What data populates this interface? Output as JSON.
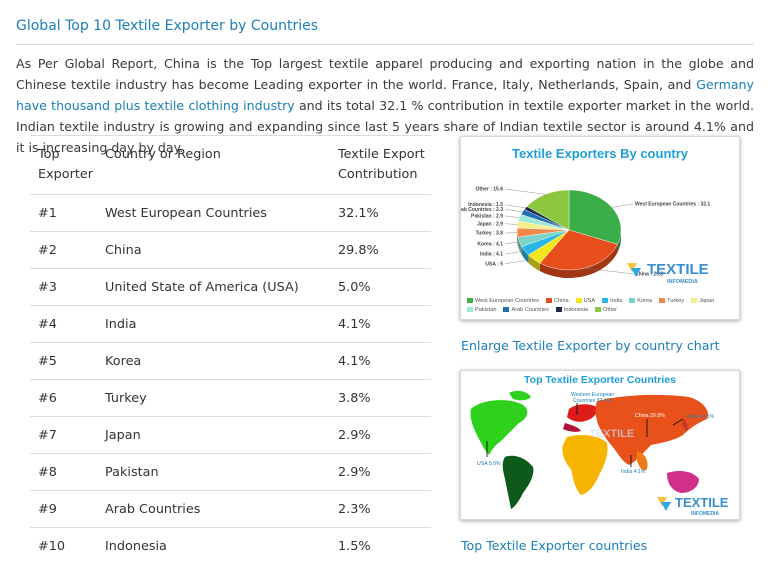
{
  "heading": "Global Top 10 Textile Exporter by Countries",
  "intro": {
    "part1": "As Per Global Report, China is the Top largest textile apparel producing and exporting nation in the globe and Chinese textile industry has become Leading exporter in the world. France, Italy, Netherlands, Spain, and ",
    "link": "Germany have thousand plus textile clothing industry",
    "part2": " and its total 32.1 % contribution in textile exporter market in the world. Indian textile industry is growing and expanding since last 5 years share of Indian textile sector is around 4.1% and it is increasing day by day."
  },
  "table": {
    "headers": {
      "rank": [
        "Top",
        "Exporter"
      ],
      "country": "Country or Region",
      "contribution": [
        "Textile Export",
        "Contribution"
      ]
    },
    "rows": [
      {
        "rank": "#1",
        "country": "West European Countries",
        "contribution": "32.1%"
      },
      {
        "rank": "#2",
        "country": "China",
        "contribution": "29.8%"
      },
      {
        "rank": "#3",
        "country": "United State of America (USA)",
        "contribution": "5.0%"
      },
      {
        "rank": "#4",
        "country": "India",
        "contribution": "4.1%"
      },
      {
        "rank": "#5",
        "country": "Korea",
        "contribution": "4.1%"
      },
      {
        "rank": "#6",
        "country": "Turkey",
        "contribution": "3.8%"
      },
      {
        "rank": "#7",
        "country": "Japan",
        "contribution": "2.9%"
      },
      {
        "rank": "#8",
        "country": "Pakistan",
        "contribution": "2.9%"
      },
      {
        "rank": "#9",
        "country": "Arab Countries",
        "contribution": "2.3%"
      },
      {
        "rank": "#10",
        "country": "Indonesia",
        "contribution": "1.5%"
      }
    ]
  },
  "pie_chart": {
    "title": "Textile Exporters By country",
    "watermark_main": "TEXTILE",
    "watermark_sub": "INFOMEDIA"
  },
  "map_chart": {
    "title": "Top Textile Exporter Countries",
    "labels": {
      "western_europe": "Western European",
      "western_europe_value": "Countries 32.1%",
      "china": "China 29.8%",
      "korea": "Korea 4.1%",
      "usa": "USA 5.0%",
      "india": "India 4.1%"
    },
    "watermark_main": "TEXTILE",
    "watermark_sub": "INFOMEDIA",
    "center_watermark": "TEXTILE"
  },
  "captions": {
    "pie": "Enlarge Textile Exporter by country chart",
    "map": "Top Textile Exporter countries"
  },
  "chart_data": {
    "type": "pie",
    "title": "Textile Exporters By country",
    "categories": [
      "West European Countries",
      "China",
      "USA",
      "India",
      "Korea",
      "Turkey",
      "Japan",
      "Pakistan",
      "Arab Countries",
      "Indonesia",
      "Other"
    ],
    "labels": [
      "West European Countries : 32.1",
      "China : 29.8",
      "USA : 5",
      "India : 4.1",
      "Korea : 4.1",
      "Turkey : 3.8",
      "Japan : 2.9",
      "Pakistan : 2.9",
      "Arab Countries : 2.3",
      "Indonesia : 1.5",
      "Other : 15.6"
    ],
    "values": [
      32.1,
      29.8,
      5.0,
      4.1,
      4.1,
      3.8,
      2.9,
      2.9,
      2.3,
      1.5,
      15.6
    ],
    "colors": [
      "#3cae49",
      "#e84e1b",
      "#f3e61c",
      "#29b6e6",
      "#7bd3c8",
      "#f08a4b",
      "#f5ef8a",
      "#9de8d6",
      "#1f6fb2",
      "#1b2a4a",
      "#8dc63f"
    ],
    "legend": "bottom"
  }
}
